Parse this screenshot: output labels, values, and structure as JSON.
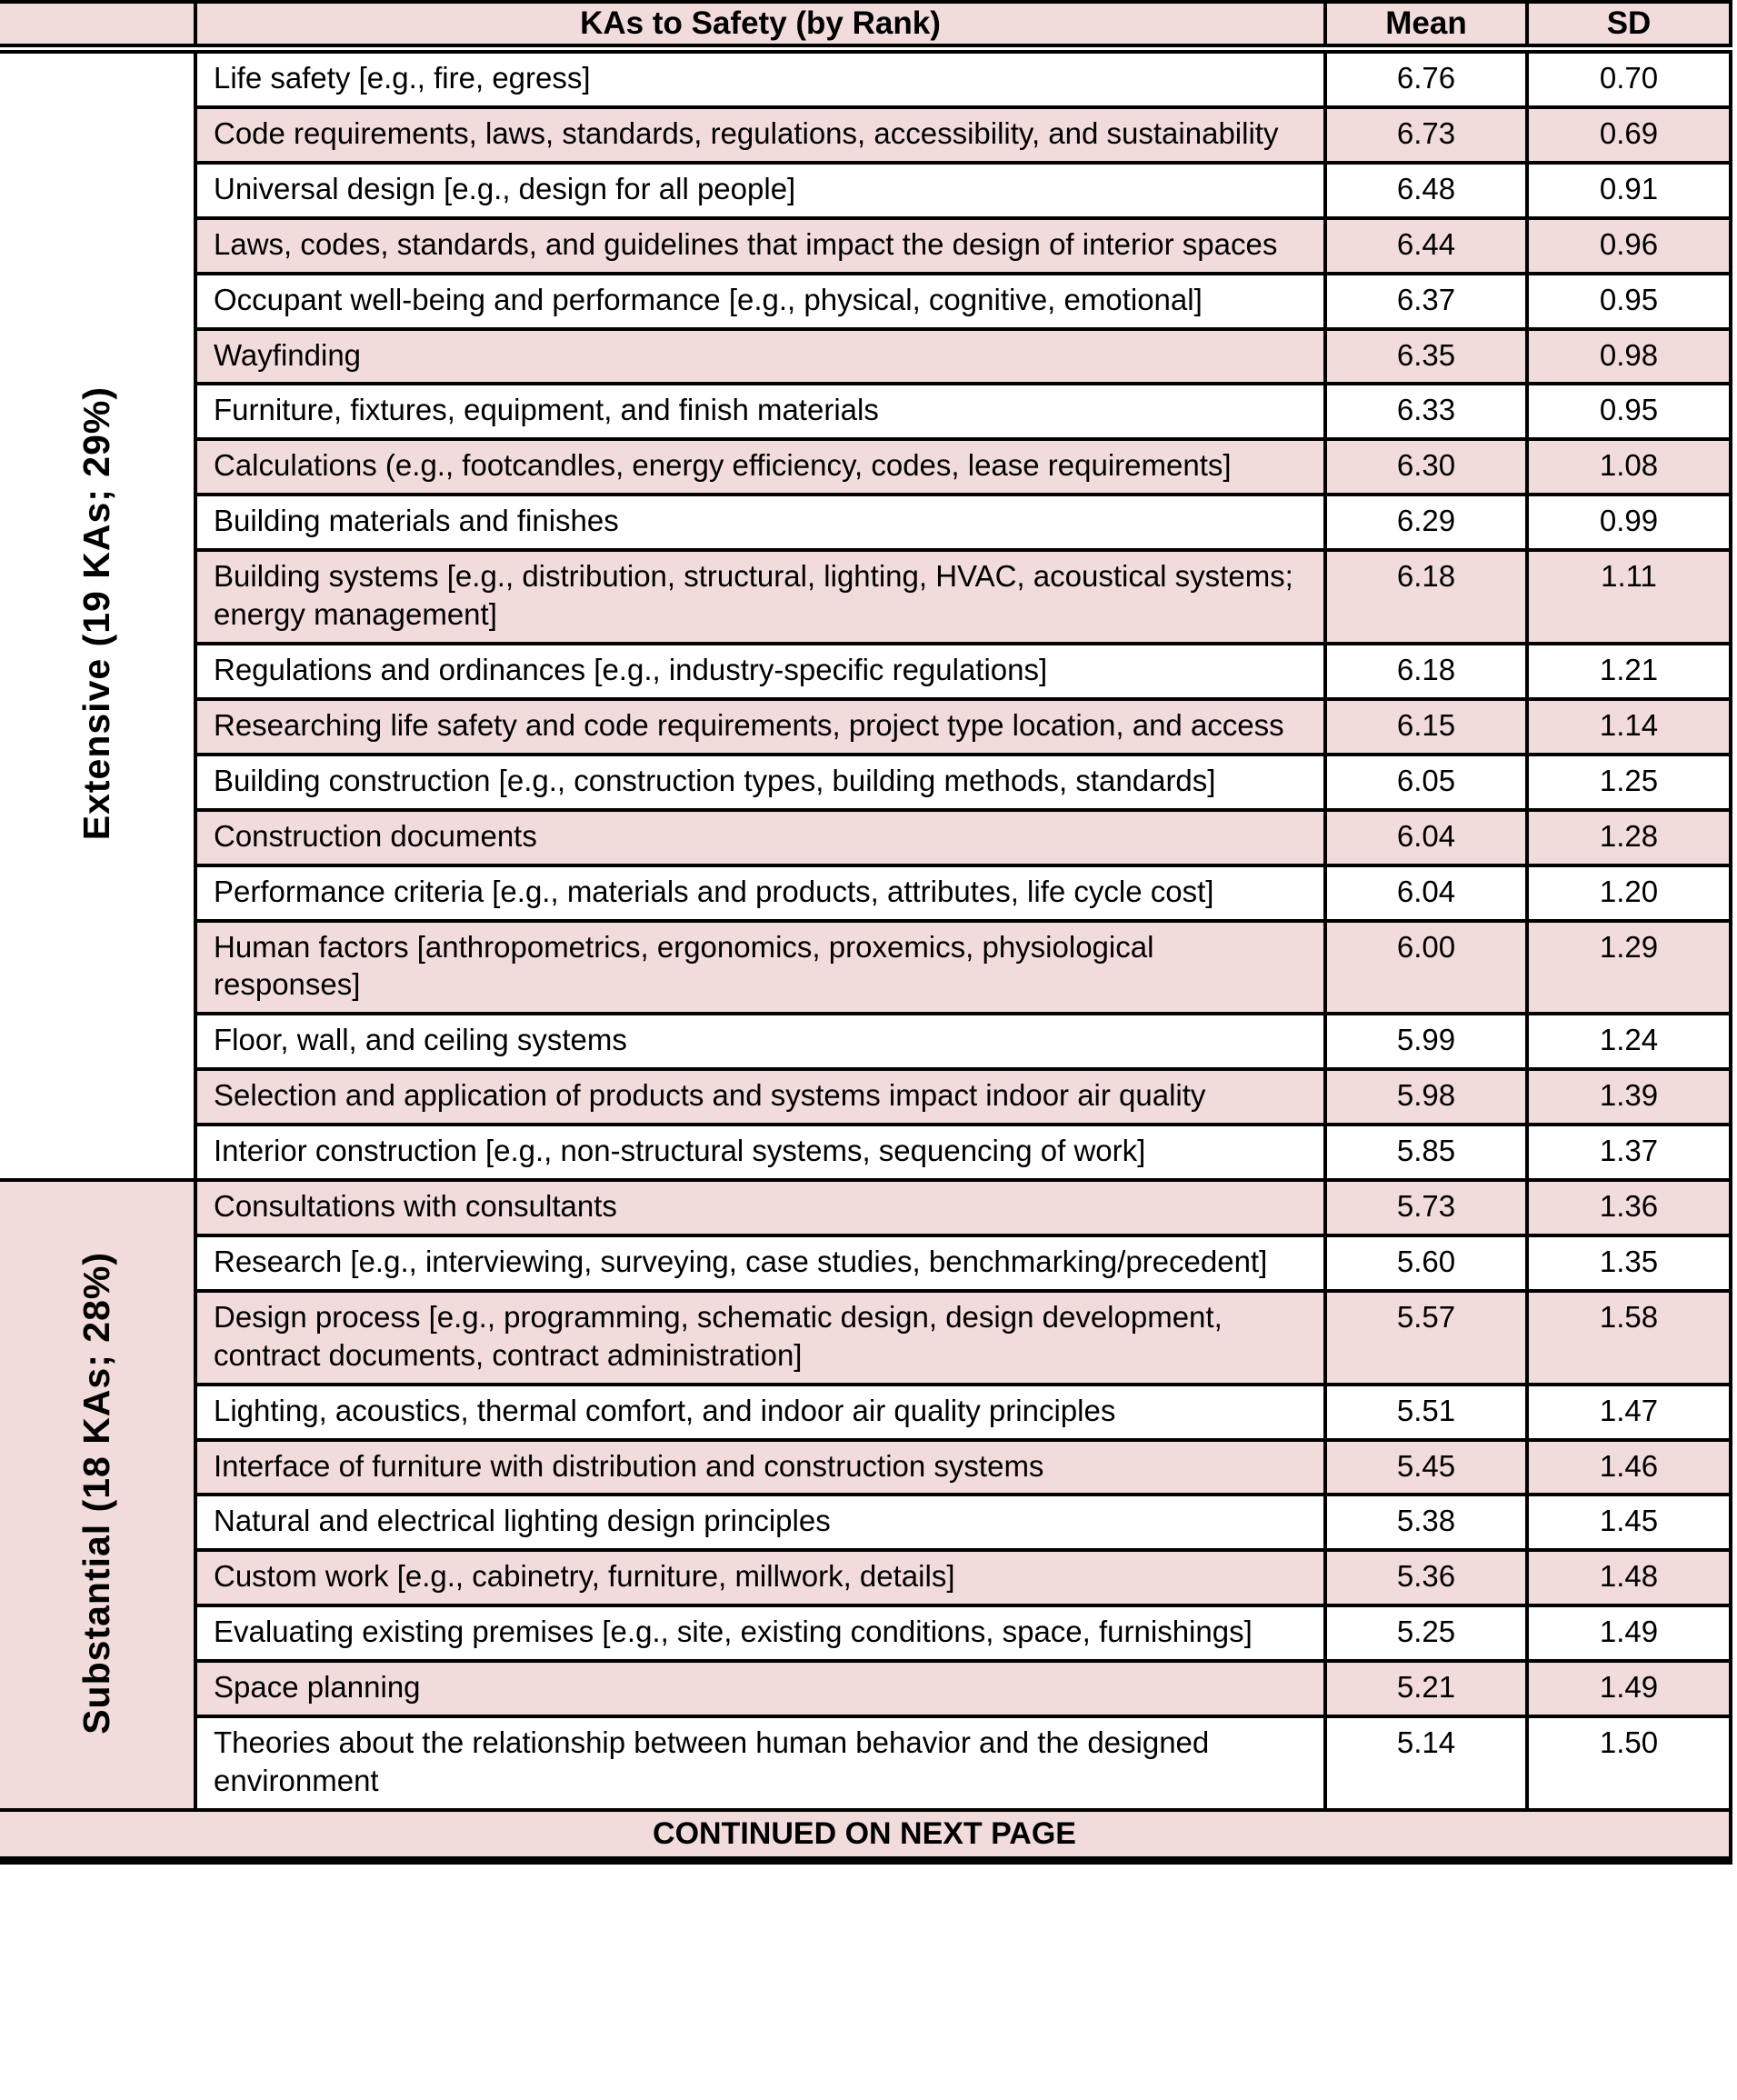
{
  "colors": {
    "row_pink": "#f2dcdb",
    "row_white": "#ffffff",
    "border_black": "#000000",
    "text_black": "#000000"
  },
  "table": {
    "header": {
      "ka": "KAs to Safety (by Rank)",
      "mean": "Mean",
      "sd": "SD"
    },
    "groups": [
      {
        "label": "Extensive (19 KAs; 29%)",
        "rows": [
          {
            "ka": "Life safety [e.g., fire, egress]",
            "mean": "6.76",
            "sd": "0.70"
          },
          {
            "ka": "Code requirements, laws, standards, regulations, accessibility, and sustainability",
            "mean": "6.73",
            "sd": "0.69"
          },
          {
            "ka": "Universal design [e.g., design for all people]",
            "mean": "6.48",
            "sd": "0.91"
          },
          {
            "ka": "Laws, codes, standards, and guidelines that impact the design of interior spaces",
            "mean": "6.44",
            "sd": "0.96"
          },
          {
            "ka": "Occupant well-being and performance [e.g., physical, cognitive, emotional]",
            "mean": "6.37",
            "sd": "0.95"
          },
          {
            "ka": "Wayfinding",
            "mean": "6.35",
            "sd": "0.98"
          },
          {
            "ka": "Furniture, fixtures, equipment, and finish materials",
            "mean": "6.33",
            "sd": "0.95"
          },
          {
            "ka": "Calculations (e.g., footcandles, energy efficiency, codes, lease requirements]",
            "mean": "6.30",
            "sd": "1.08"
          },
          {
            "ka": "Building materials and finishes",
            "mean": "6.29",
            "sd": "0.99"
          },
          {
            "ka": "Building systems [e.g., distribution, structural, lighting, HVAC, acoustical systems; energy management]",
            "mean": "6.18",
            "sd": "1.11"
          },
          {
            "ka": "Regulations and ordinances [e.g., industry-specific regulations]",
            "mean": "6.18",
            "sd": "1.21"
          },
          {
            "ka": "Researching life safety and code requirements, project type location, and access",
            "mean": "6.15",
            "sd": "1.14"
          },
          {
            "ka": "Building construction [e.g., construction types, building methods, standards]",
            "mean": "6.05",
            "sd": "1.25"
          },
          {
            "ka": "Construction documents",
            "mean": "6.04",
            "sd": "1.28"
          },
          {
            "ka": "Performance criteria [e.g., materials and products, attributes, life cycle cost]",
            "mean": "6.04",
            "sd": "1.20"
          },
          {
            "ka": "Human factors [anthropometrics, ergonomics, proxemics, physiological responses]",
            "mean": "6.00",
            "sd": "1.29"
          },
          {
            "ka": "Floor, wall, and ceiling systems",
            "mean": "5.99",
            "sd": "1.24"
          },
          {
            "ka": "Selection and application of products and systems impact indoor air quality",
            "mean": "5.98",
            "sd": "1.39"
          },
          {
            "ka": "Interior construction [e.g., non-structural systems, sequencing of work]",
            "mean": "5.85",
            "sd": "1.37"
          }
        ]
      },
      {
        "label": "Substantial (18 KAs; 28%)",
        "rows": [
          {
            "ka": "Consultations with consultants",
            "mean": "5.73",
            "sd": "1.36"
          },
          {
            "ka": "Research [e.g., interviewing, surveying, case studies, benchmarking/precedent]",
            "mean": "5.60",
            "sd": "1.35"
          },
          {
            "ka": "Design process [e.g., programming, schematic design, design development, contract documents, contract administration]",
            "mean": "5.57",
            "sd": "1.58"
          },
          {
            "ka": "Lighting, acoustics, thermal comfort, and indoor air quality principles",
            "mean": "5.51",
            "sd": "1.47"
          },
          {
            "ka": "Interface of furniture with distribution and construction systems",
            "mean": "5.45",
            "sd": "1.46"
          },
          {
            "ka": "Natural and electrical lighting design principles",
            "mean": "5.38",
            "sd": "1.45"
          },
          {
            "ka": "Custom work [e.g., cabinetry, furniture, millwork, details]",
            "mean": "5.36",
            "sd": "1.48"
          },
          {
            "ka": "Evaluating existing premises [e.g., site, existing conditions, space, furnishings]",
            "mean": "5.25",
            "sd": "1.49"
          },
          {
            "ka": "Space planning",
            "mean": "5.21",
            "sd": "1.49"
          },
          {
            "ka": "Theories about the relationship between human behavior and the designed environment",
            "mean": "5.14",
            "sd": "1.50"
          }
        ]
      }
    ],
    "footer": "CONTINUED ON NEXT PAGE"
  }
}
